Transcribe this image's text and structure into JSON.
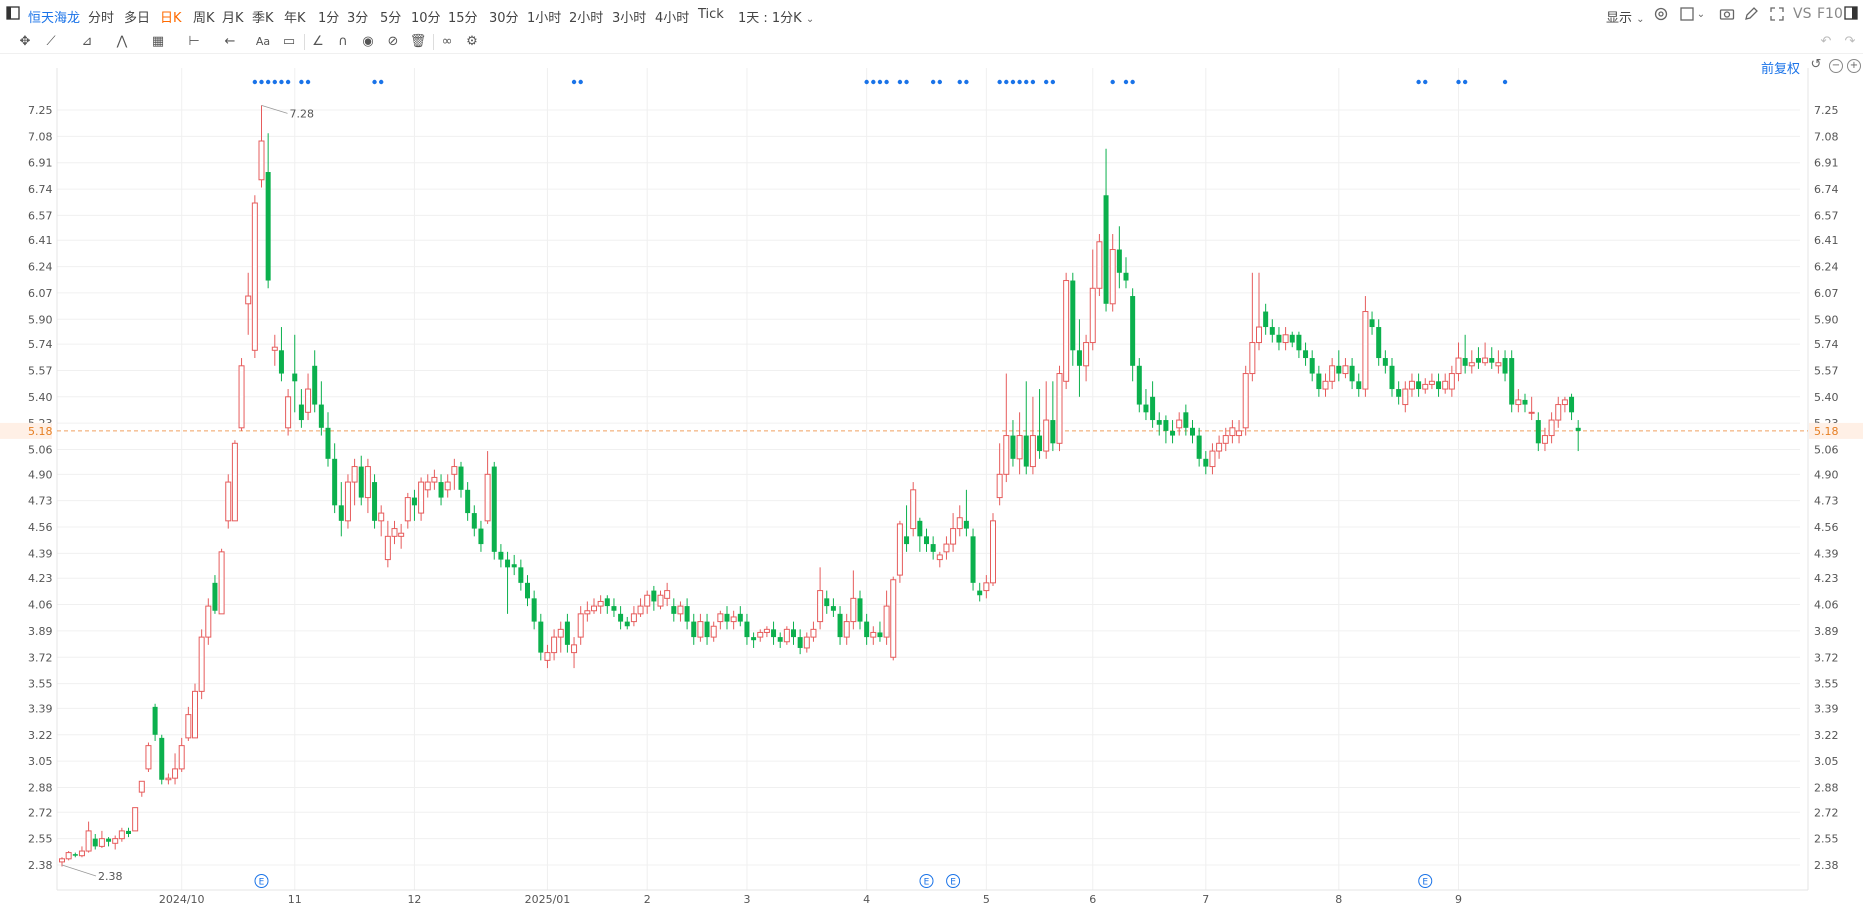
{
  "header": {
    "stock_name": "恒天海龙",
    "periods": [
      "分时",
      "多日",
      "日K",
      "周K",
      "月K",
      "季K",
      "年K",
      "1分",
      "3分",
      "5分",
      "10分",
      "15分",
      "30分",
      "1小时",
      "2小时",
      "3小时",
      "4小时",
      "Tick"
    ],
    "active_period": "日K",
    "custom_period": "1天 : 1分K",
    "display_label": "显示",
    "vs_label": "VS",
    "f10_label": "F10"
  },
  "chart_controls": {
    "adjust_label": "前复权"
  },
  "icons": [
    "sidebar-toggle-icon",
    "crosshair-icon",
    "line-tool-icon",
    "channel-tool-icon",
    "wave-tool-icon",
    "fib-tool-icon",
    "measure-tool-icon",
    "arrow-tool-icon",
    "text-tool-icon",
    "comment-icon",
    "angle-icon",
    "magnet-icon",
    "eye-icon",
    "hide-icon",
    "trash-icon",
    "link-icon",
    "settings-icon",
    "undo-icon",
    "redo-icon",
    "gear-icon",
    "layout-icon",
    "camera-icon",
    "pen-icon",
    "expand-icon",
    "window-icon",
    "reset-icon",
    "zoom-out-icon",
    "zoom-in-icon"
  ],
  "colors": {
    "up": "#e65c5c",
    "down": "#0bb04d",
    "accent": "#1a73e8",
    "active": "#ff6a00",
    "price_line": "#f0a060",
    "grid": "#f0f0f0"
  },
  "chart_data": {
    "type": "candlestick",
    "current_price": 5.18,
    "high_marker": 7.28,
    "low_marker": 2.38,
    "yticks": [
      2.38,
      2.55,
      2.72,
      2.88,
      3.05,
      3.22,
      3.39,
      3.55,
      3.72,
      3.89,
      4.06,
      4.23,
      4.39,
      4.56,
      4.73,
      4.9,
      5.06,
      5.23,
      5.4,
      5.57,
      5.74,
      5.9,
      6.07,
      6.24,
      6.41,
      6.57,
      6.74,
      6.91,
      7.08,
      7.25
    ],
    "ylim": [
      2.28,
      7.35
    ],
    "xticks": [
      {
        "label": "2024/10",
        "idx": 18
      },
      {
        "label": "11",
        "idx": 35
      },
      {
        "label": "12",
        "idx": 53
      },
      {
        "label": "2025/01",
        "idx": 73
      },
      {
        "label": "2",
        "idx": 88
      },
      {
        "label": "3",
        "idx": 103
      },
      {
        "label": "4",
        "idx": 121
      },
      {
        "label": "5",
        "idx": 139
      },
      {
        "label": "6",
        "idx": 155
      },
      {
        "label": "7",
        "idx": 172
      },
      {
        "label": "8",
        "idx": 192
      },
      {
        "label": "9",
        "idx": 210
      }
    ],
    "event_markers": [
      {
        "label": "E",
        "idx": 30
      },
      {
        "label": "E",
        "idx": 130
      },
      {
        "label": "E",
        "idx": 134
      },
      {
        "label": "E",
        "idx": 205
      }
    ],
    "dot_groups": [
      {
        "from": 29,
        "to": 34
      },
      {
        "from": 36,
        "to": 37
      },
      {
        "from": 47,
        "to": 48
      },
      {
        "from": 77,
        "to": 78
      },
      {
        "from": 121,
        "to": 124
      },
      {
        "from": 126,
        "to": 127
      },
      {
        "from": 131,
        "to": 132
      },
      {
        "from": 135,
        "to": 136
      },
      {
        "from": 141,
        "to": 146
      },
      {
        "from": 148,
        "to": 149
      },
      {
        "from": 158,
        "to": 158
      },
      {
        "from": 160,
        "to": 161
      },
      {
        "from": 204,
        "to": 205
      },
      {
        "from": 210,
        "to": 211
      },
      {
        "from": 217,
        "to": 217
      }
    ],
    "candles": [
      [
        2.4,
        2.42,
        2.37,
        2.43
      ],
      [
        2.42,
        2.46,
        2.41,
        2.47
      ],
      [
        2.45,
        2.44,
        2.43,
        2.46
      ],
      [
        2.44,
        2.47,
        2.43,
        2.5
      ],
      [
        2.47,
        2.6,
        2.46,
        2.66
      ],
      [
        2.55,
        2.5,
        2.48,
        2.58
      ],
      [
        2.5,
        2.55,
        2.49,
        2.6
      ],
      [
        2.55,
        2.53,
        2.5,
        2.56
      ],
      [
        2.52,
        2.55,
        2.48,
        2.57
      ],
      [
        2.55,
        2.6,
        2.53,
        2.62
      ],
      [
        2.6,
        2.58,
        2.56,
        2.62
      ],
      [
        2.6,
        2.75,
        2.6,
        2.75
      ],
      [
        2.85,
        2.92,
        2.82,
        2.92
      ],
      [
        3.0,
        3.15,
        2.98,
        3.17
      ],
      [
        3.4,
        3.22,
        3.18,
        3.42
      ],
      [
        3.2,
        2.93,
        2.9,
        3.22
      ],
      [
        2.93,
        2.94,
        2.9,
        2.97
      ],
      [
        2.94,
        3.0,
        2.9,
        3.1
      ],
      [
        3.0,
        3.15,
        2.98,
        3.2
      ],
      [
        3.2,
        3.35,
        3.18,
        3.4
      ],
      [
        3.2,
        3.5,
        3.2,
        3.55
      ],
      [
        3.5,
        3.85,
        3.45,
        3.9
      ],
      [
        3.85,
        4.05,
        3.8,
        4.1
      ],
      [
        4.2,
        4.02,
        4.0,
        4.25
      ],
      [
        4.0,
        4.4,
        4.0,
        4.42
      ],
      [
        4.6,
        4.85,
        4.55,
        4.9
      ],
      [
        4.6,
        5.1,
        4.6,
        5.12
      ],
      [
        5.2,
        5.6,
        5.18,
        5.65
      ],
      [
        6.0,
        6.05,
        5.8,
        6.2
      ],
      [
        5.7,
        6.65,
        5.65,
        6.7
      ],
      [
        6.8,
        7.05,
        6.75,
        7.28
      ],
      [
        6.85,
        6.15,
        6.1,
        7.1
      ],
      [
        5.7,
        5.72,
        5.6,
        5.8
      ],
      [
        5.7,
        5.55,
        5.5,
        5.85
      ],
      [
        5.2,
        5.4,
        5.15,
        5.45
      ],
      [
        5.55,
        5.5,
        5.3,
        5.8
      ],
      [
        5.35,
        5.25,
        5.2,
        5.45
      ],
      [
        5.3,
        5.45,
        5.25,
        5.55
      ],
      [
        5.6,
        5.35,
        5.3,
        5.7
      ],
      [
        5.35,
        5.2,
        5.15,
        5.5
      ],
      [
        5.2,
        5.0,
        4.95,
        5.3
      ],
      [
        5.0,
        4.7,
        4.65,
        5.1
      ],
      [
        4.7,
        4.6,
        4.5,
        4.85
      ],
      [
        4.6,
        4.85,
        4.55,
        4.9
      ],
      [
        4.85,
        4.95,
        4.7,
        5.0
      ],
      [
        4.95,
        4.75,
        4.7,
        5.02
      ],
      [
        4.75,
        4.95,
        4.65,
        5.0
      ],
      [
        4.85,
        4.6,
        4.55,
        4.9
      ],
      [
        4.6,
        4.65,
        4.5,
        4.7
      ],
      [
        4.35,
        4.5,
        4.3,
        4.6
      ],
      [
        4.5,
        4.55,
        4.45,
        4.6
      ],
      [
        4.5,
        4.52,
        4.42,
        4.58
      ],
      [
        4.6,
        4.75,
        4.55,
        4.78
      ],
      [
        4.75,
        4.7,
        4.6,
        4.8
      ],
      [
        4.65,
        4.85,
        4.6,
        4.88
      ],
      [
        4.8,
        4.85,
        4.75,
        4.9
      ],
      [
        4.85,
        4.88,
        4.8,
        4.93
      ],
      [
        4.85,
        4.75,
        4.7,
        4.9
      ],
      [
        4.8,
        4.85,
        4.75,
        4.9
      ],
      [
        4.9,
        4.95,
        4.8,
        5.0
      ],
      [
        4.95,
        4.8,
        4.75,
        4.98
      ],
      [
        4.8,
        4.65,
        4.6,
        4.85
      ],
      [
        4.65,
        4.55,
        4.5,
        4.7
      ],
      [
        4.55,
        4.45,
        4.4,
        4.6
      ],
      [
        4.6,
        4.9,
        4.58,
        5.05
      ],
      [
        4.95,
        4.4,
        4.35,
        4.98
      ],
      [
        4.4,
        4.35,
        4.3,
        4.45
      ],
      [
        4.35,
        4.3,
        4.0,
        4.4
      ],
      [
        4.32,
        4.3,
        4.25,
        4.38
      ],
      [
        4.3,
        4.2,
        4.15,
        4.35
      ],
      [
        4.2,
        4.1,
        4.05,
        4.25
      ],
      [
        4.1,
        3.95,
        3.9,
        4.15
      ],
      [
        3.95,
        3.75,
        3.7,
        4.0
      ],
      [
        3.7,
        3.75,
        3.65,
        3.8
      ],
      [
        3.75,
        3.85,
        3.7,
        3.9
      ],
      [
        3.85,
        3.9,
        3.75,
        3.95
      ],
      [
        3.95,
        3.8,
        3.75,
        4.0
      ],
      [
        3.75,
        3.8,
        3.65,
        3.85
      ],
      [
        3.85,
        4.0,
        3.8,
        4.05
      ],
      [
        4.0,
        4.02,
        3.95,
        4.08
      ],
      [
        4.02,
        4.05,
        4.0,
        4.1
      ],
      [
        4.05,
        4.08,
        4.0,
        4.12
      ],
      [
        4.1,
        4.05,
        4.0,
        4.12
      ],
      [
        4.05,
        4.02,
        3.98,
        4.1
      ],
      [
        4.0,
        3.95,
        3.9,
        4.05
      ],
      [
        3.95,
        3.92,
        3.9,
        3.98
      ],
      [
        3.95,
        4.0,
        3.92,
        4.05
      ],
      [
        4.0,
        4.05,
        3.98,
        4.1
      ],
      [
        4.05,
        4.12,
        4.0,
        4.15
      ],
      [
        4.15,
        4.08,
        4.02,
        4.18
      ],
      [
        4.05,
        4.12,
        4.03,
        4.15
      ],
      [
        4.1,
        4.15,
        4.05,
        4.2
      ],
      [
        4.05,
        4.0,
        3.95,
        4.1
      ],
      [
        4.0,
        4.05,
        3.95,
        4.08
      ],
      [
        4.05,
        3.95,
        3.9,
        4.1
      ],
      [
        3.95,
        3.85,
        3.8,
        4.0
      ],
      [
        3.85,
        3.95,
        3.82,
        4.0
      ],
      [
        3.95,
        3.85,
        3.8,
        4.0
      ],
      [
        3.85,
        3.92,
        3.82,
        3.95
      ],
      [
        3.95,
        4.0,
        3.9,
        4.02
      ],
      [
        4.0,
        3.95,
        3.9,
        4.05
      ],
      [
        3.95,
        3.98,
        3.9,
        4.02
      ],
      [
        4.0,
        3.95,
        3.92,
        4.05
      ],
      [
        3.95,
        3.85,
        3.8,
        4.0
      ],
      [
        3.85,
        3.83,
        3.78,
        3.88
      ],
      [
        3.85,
        3.88,
        3.82,
        3.9
      ],
      [
        3.88,
        3.9,
        3.85,
        3.92
      ],
      [
        3.9,
        3.85,
        3.8,
        3.95
      ],
      [
        3.85,
        3.82,
        3.78,
        3.88
      ],
      [
        3.82,
        3.9,
        3.8,
        3.92
      ],
      [
        3.9,
        3.85,
        3.8,
        3.95
      ],
      [
        3.85,
        3.78,
        3.74,
        3.9
      ],
      [
        3.78,
        3.85,
        3.75,
        3.88
      ],
      [
        3.85,
        3.9,
        3.82,
        3.95
      ],
      [
        3.95,
        4.15,
        3.9,
        4.3
      ],
      [
        4.1,
        4.05,
        4.0,
        4.15
      ],
      [
        4.05,
        4.02,
        3.98,
        4.1
      ],
      [
        4.0,
        3.85,
        3.8,
        4.05
      ],
      [
        3.85,
        3.95,
        3.8,
        4.0
      ],
      [
        3.95,
        4.1,
        3.9,
        4.28
      ],
      [
        4.1,
        3.95,
        3.9,
        4.15
      ],
      [
        3.95,
        3.85,
        3.8,
        4.0
      ],
      [
        3.85,
        3.88,
        3.8,
        3.92
      ],
      [
        3.88,
        3.85,
        3.82,
        3.95
      ],
      [
        3.85,
        4.05,
        3.8,
        4.15
      ],
      [
        3.72,
        4.22,
        3.7,
        4.24
      ],
      [
        4.25,
        4.58,
        4.2,
        4.6
      ],
      [
        4.5,
        4.45,
        4.4,
        4.7
      ],
      [
        4.55,
        4.8,
        4.5,
        4.85
      ],
      [
        4.6,
        4.5,
        4.4,
        4.62
      ],
      [
        4.5,
        4.45,
        4.4,
        4.55
      ],
      [
        4.45,
        4.4,
        4.35,
        4.5
      ],
      [
        4.35,
        4.38,
        4.3,
        4.4
      ],
      [
        4.4,
        4.45,
        4.35,
        4.5
      ],
      [
        4.45,
        4.55,
        4.4,
        4.65
      ],
      [
        4.55,
        4.62,
        4.5,
        4.7
      ],
      [
        4.6,
        4.55,
        4.5,
        4.8
      ],
      [
        4.5,
        4.2,
        4.15,
        4.55
      ],
      [
        4.15,
        4.12,
        4.08,
        4.2
      ],
      [
        4.15,
        4.2,
        4.1,
        4.25
      ],
      [
        4.2,
        4.6,
        4.18,
        4.65
      ],
      [
        4.75,
        4.9,
        4.7,
        5.1
      ],
      [
        4.9,
        5.15,
        4.85,
        5.55
      ],
      [
        5.15,
        5.0,
        4.95,
        5.25
      ],
      [
        5.0,
        5.15,
        4.9,
        5.3
      ],
      [
        5.15,
        4.95,
        4.9,
        5.5
      ],
      [
        4.95,
        5.15,
        4.9,
        5.4
      ],
      [
        5.15,
        5.05,
        5.0,
        5.45
      ],
      [
        5.05,
        5.25,
        5.0,
        5.5
      ],
      [
        5.25,
        5.1,
        5.05,
        5.5
      ],
      [
        5.1,
        5.55,
        5.05,
        5.6
      ],
      [
        5.5,
        6.15,
        5.45,
        6.2
      ],
      [
        6.15,
        5.7,
        5.6,
        6.2
      ],
      [
        5.7,
        5.6,
        5.4,
        5.9
      ],
      [
        5.6,
        5.75,
        5.5,
        5.8
      ],
      [
        5.75,
        6.1,
        5.7,
        6.35
      ],
      [
        6.1,
        6.4,
        6.05,
        6.45
      ],
      [
        6.7,
        6.0,
        5.95,
        7.0
      ],
      [
        6.0,
        6.35,
        5.95,
        6.45
      ],
      [
        6.35,
        6.2,
        6.1,
        6.5
      ],
      [
        6.2,
        6.15,
        6.1,
        6.3
      ],
      [
        6.05,
        5.6,
        5.5,
        6.1
      ],
      [
        5.6,
        5.35,
        5.3,
        5.65
      ],
      [
        5.35,
        5.3,
        5.25,
        5.45
      ],
      [
        5.4,
        5.25,
        5.2,
        5.5
      ],
      [
        5.25,
        5.22,
        5.15,
        5.3
      ],
      [
        5.25,
        5.18,
        5.1,
        5.28
      ],
      [
        5.18,
        5.15,
        5.1,
        5.25
      ],
      [
        5.2,
        5.25,
        5.15,
        5.3
      ],
      [
        5.3,
        5.2,
        5.15,
        5.35
      ],
      [
        5.2,
        5.15,
        5.1,
        5.25
      ],
      [
        5.15,
        5.0,
        4.95,
        5.2
      ],
      [
        5.0,
        4.95,
        4.9,
        5.05
      ],
      [
        4.95,
        5.05,
        4.9,
        5.1
      ],
      [
        5.05,
        5.1,
        5.0,
        5.15
      ],
      [
        5.1,
        5.15,
        5.05,
        5.2
      ],
      [
        5.15,
        5.2,
        5.1,
        5.25
      ],
      [
        5.15,
        5.18,
        5.1,
        5.25
      ],
      [
        5.2,
        5.55,
        5.15,
        5.6
      ],
      [
        5.55,
        5.75,
        5.5,
        6.2
      ],
      [
        5.75,
        5.85,
        5.7,
        6.2
      ],
      [
        5.95,
        5.85,
        5.8,
        6.0
      ],
      [
        5.85,
        5.8,
        5.75,
        5.9
      ],
      [
        5.8,
        5.75,
        5.7,
        5.85
      ],
      [
        5.75,
        5.8,
        5.7,
        5.85
      ],
      [
        5.8,
        5.75,
        5.72,
        5.82
      ],
      [
        5.8,
        5.7,
        5.65,
        5.82
      ],
      [
        5.7,
        5.65,
        5.6,
        5.75
      ],
      [
        5.65,
        5.55,
        5.5,
        5.7
      ],
      [
        5.55,
        5.45,
        5.4,
        5.6
      ],
      [
        5.45,
        5.5,
        5.4,
        5.55
      ],
      [
        5.5,
        5.6,
        5.45,
        5.65
      ],
      [
        5.6,
        5.55,
        5.5,
        5.7
      ],
      [
        5.55,
        5.6,
        5.52,
        5.65
      ],
      [
        5.6,
        5.5,
        5.45,
        5.65
      ],
      [
        5.5,
        5.45,
        5.4,
        5.55
      ],
      [
        5.45,
        5.95,
        5.4,
        6.05
      ],
      [
        5.9,
        5.85,
        5.8,
        5.95
      ],
      [
        5.85,
        5.65,
        5.6,
        5.9
      ],
      [
        5.65,
        5.6,
        5.55,
        5.7
      ],
      [
        5.6,
        5.45,
        5.4,
        5.65
      ],
      [
        5.45,
        5.4,
        5.35,
        5.5
      ],
      [
        5.35,
        5.45,
        5.3,
        5.5
      ],
      [
        5.45,
        5.5,
        5.4,
        5.55
      ],
      [
        5.5,
        5.45,
        5.4,
        5.55
      ],
      [
        5.45,
        5.48,
        5.42,
        5.52
      ],
      [
        5.48,
        5.5,
        5.45,
        5.55
      ],
      [
        5.5,
        5.45,
        5.4,
        5.55
      ],
      [
        5.45,
        5.5,
        5.42,
        5.55
      ],
      [
        5.45,
        5.55,
        5.4,
        5.6
      ],
      [
        5.55,
        5.65,
        5.5,
        5.75
      ],
      [
        5.65,
        5.6,
        5.55,
        5.8
      ],
      [
        5.6,
        5.62,
        5.55,
        5.7
      ],
      [
        5.65,
        5.62,
        5.58,
        5.72
      ],
      [
        5.62,
        5.65,
        5.6,
        5.75
      ],
      [
        5.65,
        5.62,
        5.58,
        5.72
      ],
      [
        5.6,
        5.62,
        5.55,
        5.7
      ],
      [
        5.65,
        5.55,
        5.5,
        5.7
      ],
      [
        5.65,
        5.35,
        5.3,
        5.7
      ],
      [
        5.35,
        5.38,
        5.3,
        5.45
      ],
      [
        5.38,
        5.35,
        5.3,
        5.42
      ],
      [
        5.3,
        5.3,
        5.25,
        5.4
      ],
      [
        5.25,
        5.1,
        5.05,
        5.3
      ],
      [
        5.1,
        5.15,
        5.05,
        5.2
      ],
      [
        5.15,
        5.25,
        5.1,
        5.3
      ],
      [
        5.25,
        5.35,
        5.2,
        5.4
      ],
      [
        5.35,
        5.38,
        5.3,
        5.4
      ],
      [
        5.4,
        5.3,
        5.25,
        5.42
      ],
      [
        5.2,
        5.18,
        5.05,
        5.25
      ]
    ]
  }
}
